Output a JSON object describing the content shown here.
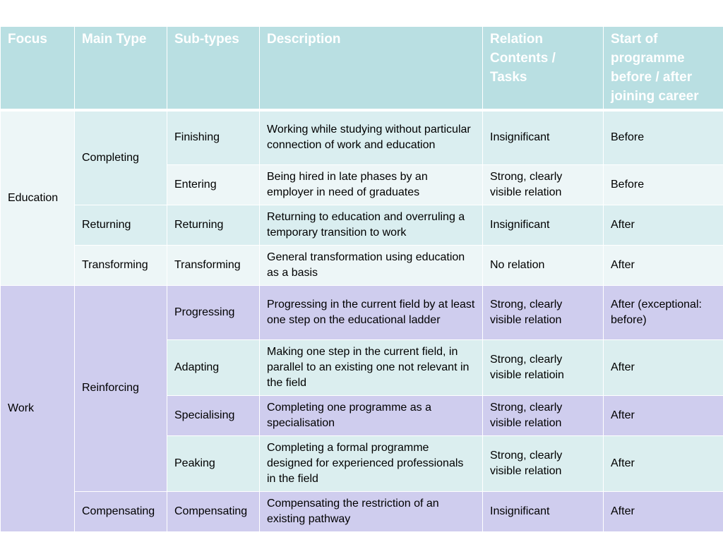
{
  "headers": {
    "focus": "Focus",
    "main_type": "Main Type",
    "sub_types": "Sub-types",
    "description": "Description",
    "relation": "Relation Contents / Tasks",
    "start": "Start of programme before / after joining career"
  },
  "education": {
    "focus": "Education",
    "completing": {
      "main_type": "Completing",
      "finishing": {
        "sub_type": "Finishing",
        "description": "Working while studying without particular connection of work and education",
        "relation": "Insignificant",
        "start": "Before"
      },
      "entering": {
        "sub_type": "Entering",
        "description": "Being hired in late phases by an employer in need of graduates",
        "relation": "Strong, clearly visible relation",
        "start": "Before"
      }
    },
    "returning": {
      "main_type": "Returning",
      "sub_type": "Returning",
      "description": "Returning to education and overruling a temporary transition to work",
      "relation": "Insignificant",
      "start": "After"
    },
    "transforming": {
      "main_type": "Transforming",
      "sub_type": "Transforming",
      "description": "General transformation using education as a basis",
      "relation": "No relation",
      "start": "After"
    }
  },
  "work": {
    "focus": "Work",
    "reinforcing": {
      "main_type": "Reinforcing",
      "progressing": {
        "sub_type": "Progressing",
        "description": "Progressing in the current field by at least one step on the educational ladder",
        "relation": "Strong, clearly visible relation",
        "start": "After (exceptional: before)"
      },
      "adapting": {
        "sub_type": "Adapting",
        "description": "Making one step in the current field, in parallel to an existing one not relevant in the field",
        "relation": "Strong, clearly visible relatioin",
        "start": "After"
      },
      "specialising": {
        "sub_type": "Specialising",
        "description": "Completing one programme as a specialisation",
        "relation": "Strong, clearly visible relation",
        "start": "After"
      },
      "peaking": {
        "sub_type": "Peaking",
        "description": "Completing a formal programme designed for experienced professionals in the field",
        "relation": "Strong, clearly visible relation",
        "start": "After"
      }
    },
    "compensating": {
      "main_type": "Compensating",
      "sub_type": "Compensating",
      "description": "Compensating the restriction of an existing pathway",
      "relation": "Insignificant",
      "start": "After"
    }
  }
}
